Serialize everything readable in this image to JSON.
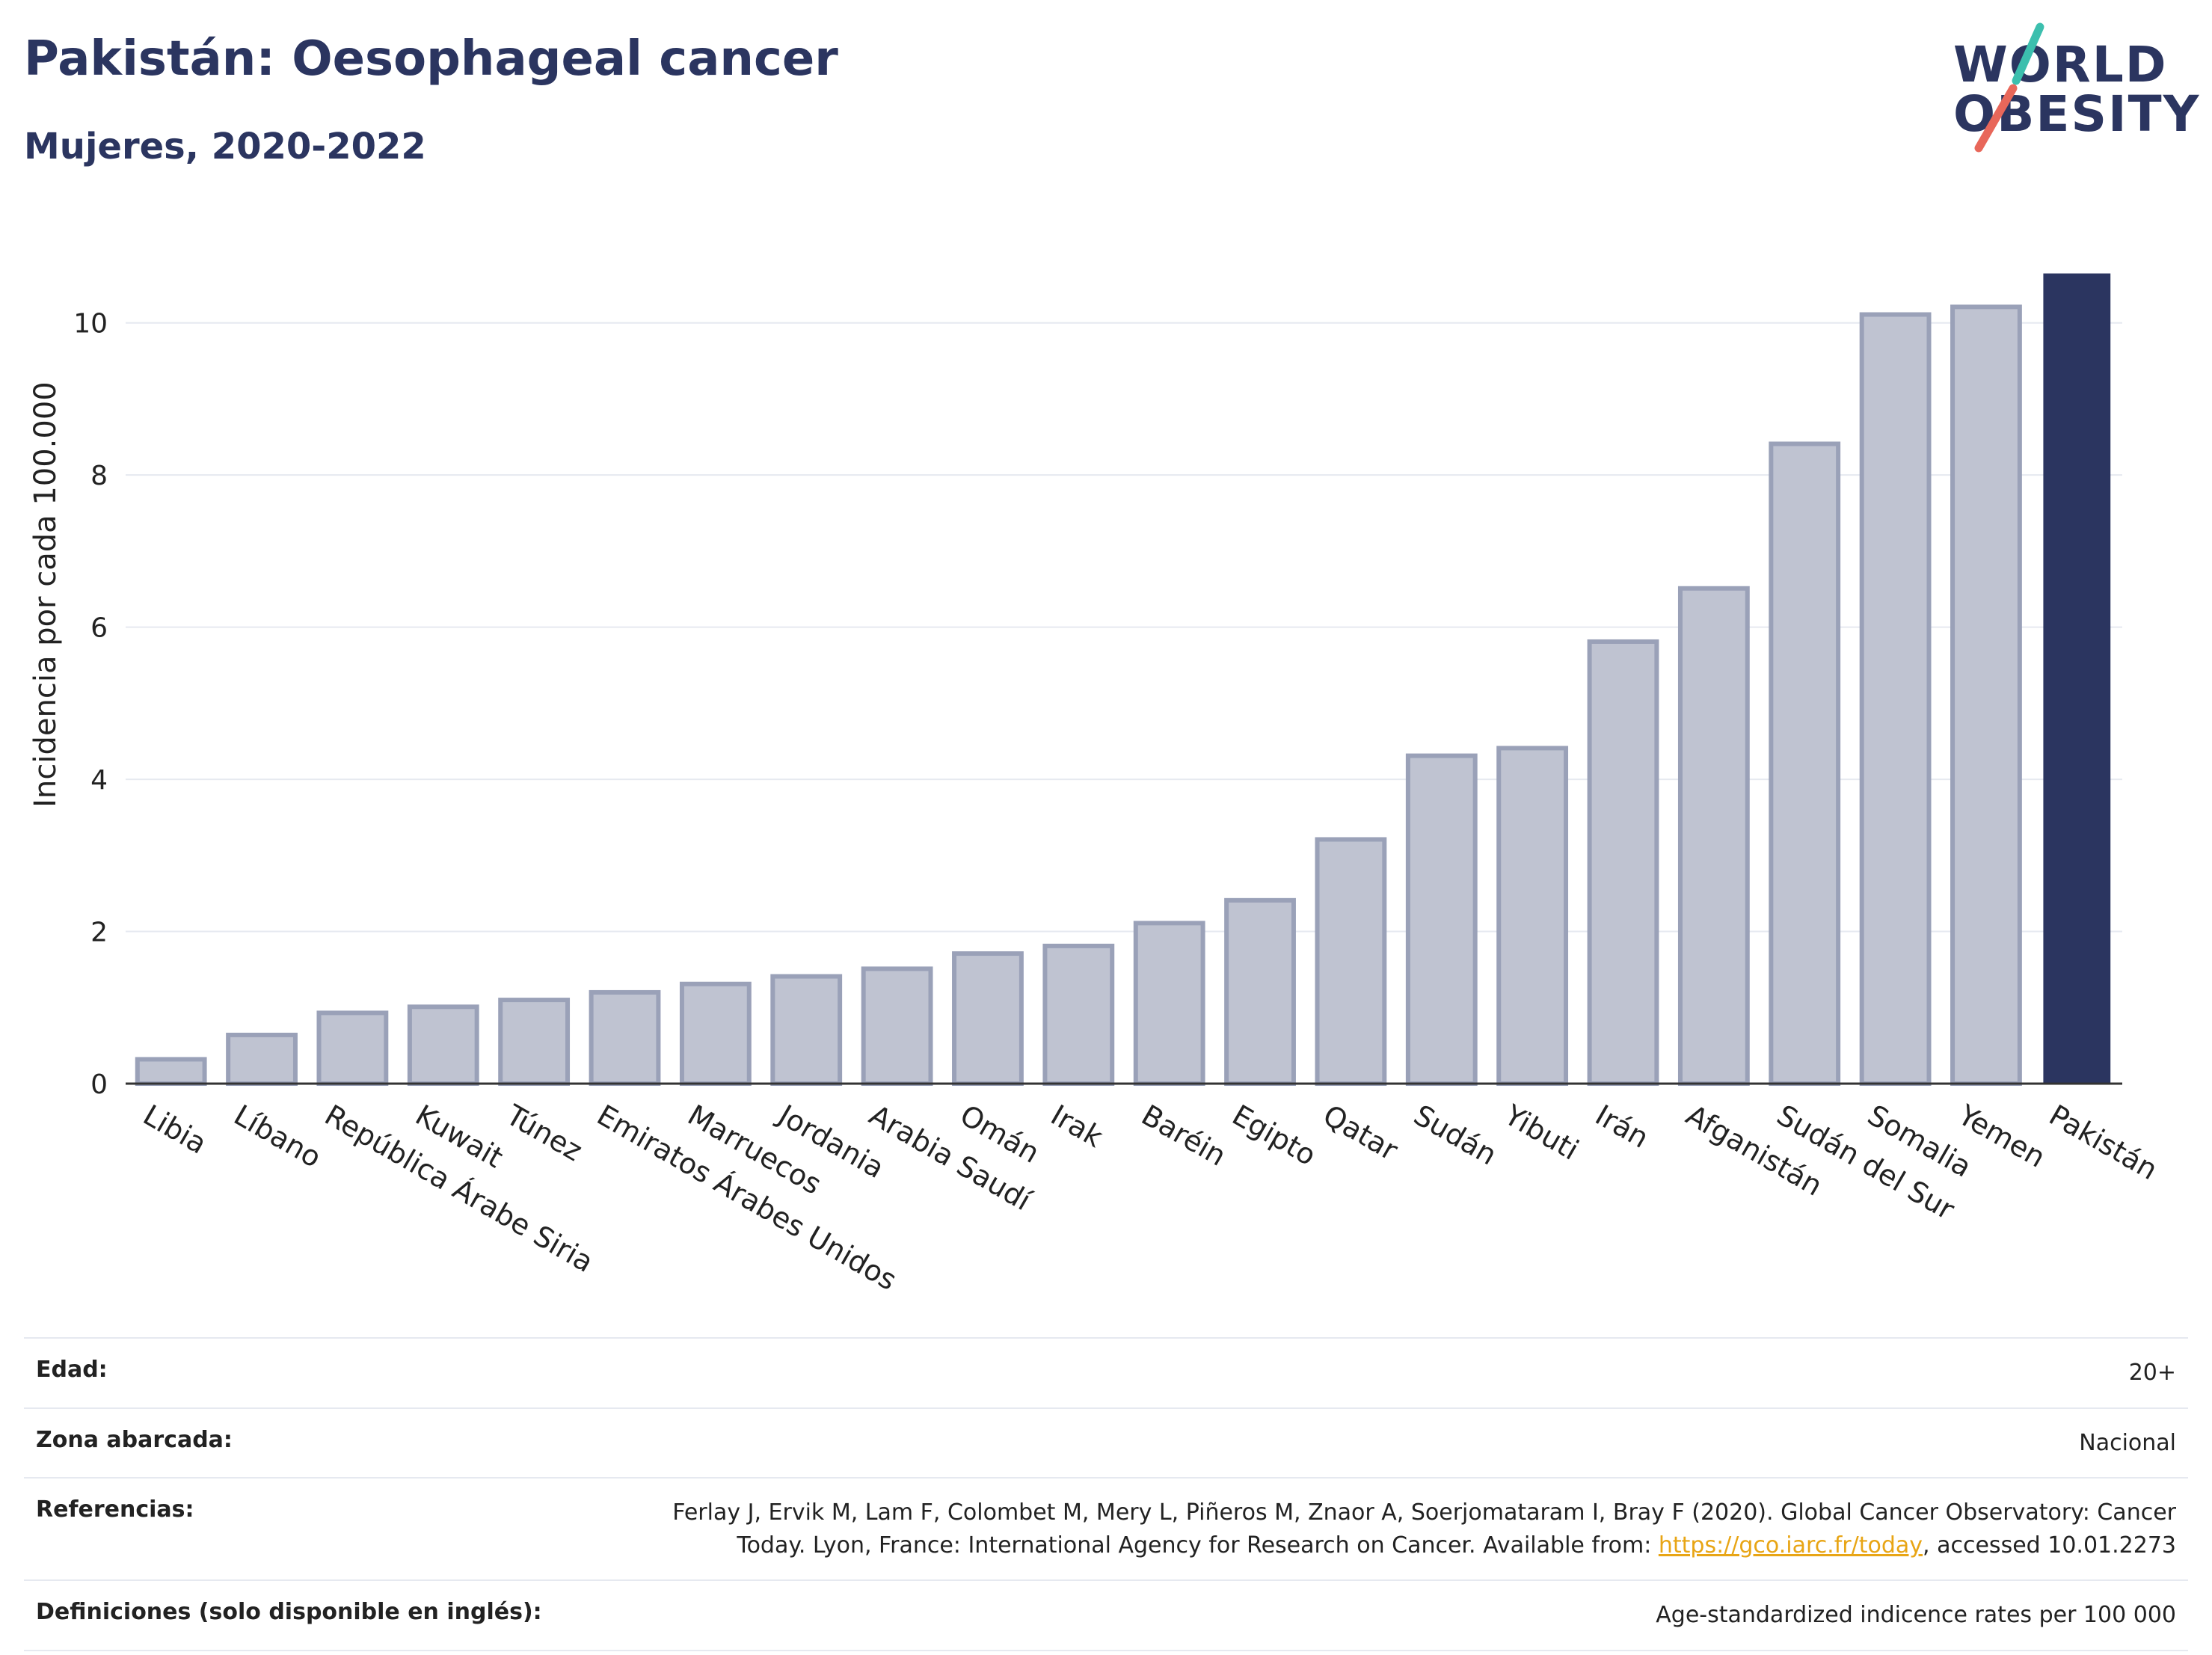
{
  "header": {
    "title": "Pakistán: Oesophageal cancer",
    "subtitle": "Mujeres, 2020-2022"
  },
  "logo": {
    "line1": "WORLD",
    "line2": "OBESITY",
    "colors": {
      "text": "#2b3560",
      "slash_top": "#3cbfae",
      "slash_bottom": "#e8675a"
    }
  },
  "chart_data": {
    "type": "bar",
    "title": "",
    "xlabel": "",
    "ylabel": "Incidencia por cada 100.000",
    "ylim": [
      0,
      11
    ],
    "yticks": [
      0,
      2,
      4,
      6,
      8,
      10
    ],
    "grid": true,
    "legend": "none",
    "categories": [
      "Libia",
      "Líbano",
      "República Árabe Siria",
      "Kuwait",
      "Túnez",
      "Emiratos Árabes Unidos",
      "Marruecos",
      "Jordania",
      "Arabia Saudí",
      "Omán",
      "Irak",
      "Baréin",
      "Egipto",
      "Qatar",
      "Sudán",
      "Yibuti",
      "Irán",
      "Afganistán",
      "Sudán del Sur",
      "Somalia",
      "Yemen",
      "Pakistán"
    ],
    "values": [
      0.32,
      0.64,
      0.93,
      1.01,
      1.1,
      1.2,
      1.31,
      1.41,
      1.51,
      1.71,
      1.81,
      2.11,
      2.41,
      3.21,
      4.31,
      4.41,
      5.81,
      6.51,
      8.41,
      10.11,
      10.21,
      10.65
    ],
    "highlight": "Pakistán",
    "colors": {
      "bar": "#bfc3d1",
      "bar_border": "#9aa1b8",
      "highlight": "#2b3560",
      "grid": "#e6e9f0",
      "axis": "#333333"
    }
  },
  "footer": {
    "rows": [
      {
        "label": "Edad:",
        "value": "20+"
      },
      {
        "label": "Zona abarcada:",
        "value": "Nacional"
      },
      {
        "label": "Referencias:",
        "value_line1": "Ferlay J, Ervik M, Lam F, Colombet M, Mery L, Piñeros M, Znaor A, Soerjomataram I, Bray F (2020). Global Cancer Observatory: Cancer",
        "value_pre": "Today. Lyon, France: International Agency for Research on Cancer. Available from: ",
        "link": "https://gco.iarc.fr/today",
        "value_post": ", accessed 10.01.2273"
      },
      {
        "label": "Definiciones (solo disponible en inglés):",
        "value": "Age-standardized indicence rates per 100 000"
      }
    ]
  }
}
